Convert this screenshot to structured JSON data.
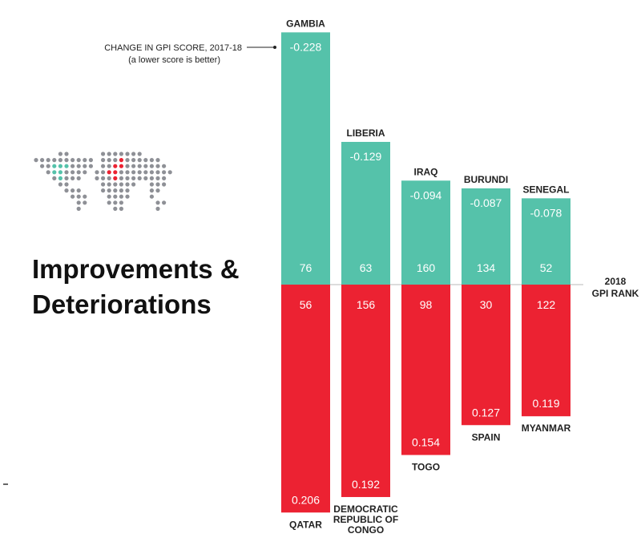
{
  "title_lines": [
    "Improvements &",
    "Deteriorations"
  ],
  "annotation": {
    "line1": "CHANGE IN GPI SCORE, 2017-18",
    "line2": "(a lower score is better)"
  },
  "rank_label": [
    "2018",
    "GPI RANK"
  ],
  "colors": {
    "improvement": "#55c2aa",
    "deterioration": "#ec2232",
    "map_dot": "#8e9096",
    "map_green": "#55c2aa",
    "map_red": "#ec2232"
  },
  "chart_data": [
    {
      "type": "bar",
      "name": "improvements",
      "categories": [
        "GAMBIA",
        "LIBERIA",
        "IRAQ",
        "BURUNDI",
        "SENEGAL"
      ],
      "values": [
        -0.228,
        -0.129,
        -0.094,
        -0.087,
        -0.078
      ],
      "value_labels": [
        "-0.228",
        "-0.129",
        "-0.094",
        "-0.087",
        "-0.078"
      ],
      "gpi_rank_2018": [
        76,
        63,
        160,
        134,
        52
      ]
    },
    {
      "type": "bar",
      "name": "deteriorations",
      "categories": [
        "QATAR",
        "DEMOCRATIC REPUBLIC OF CONGO",
        "TOGO",
        "SPAIN",
        "MYANMAR"
      ],
      "category_lines": [
        [
          "QATAR"
        ],
        [
          "DEMOCRATIC",
          "REPUBLIC OF",
          "CONGO"
        ],
        [
          "TOGO"
        ],
        [
          "SPAIN"
        ],
        [
          "MYANMAR"
        ]
      ],
      "values": [
        0.206,
        0.192,
        0.154,
        0.127,
        0.119
      ],
      "value_labels": [
        "0.206",
        "0.192",
        "0.154",
        "0.127",
        "0.119"
      ],
      "gpi_rank_2018": [
        56,
        156,
        98,
        30,
        122
      ]
    }
  ]
}
